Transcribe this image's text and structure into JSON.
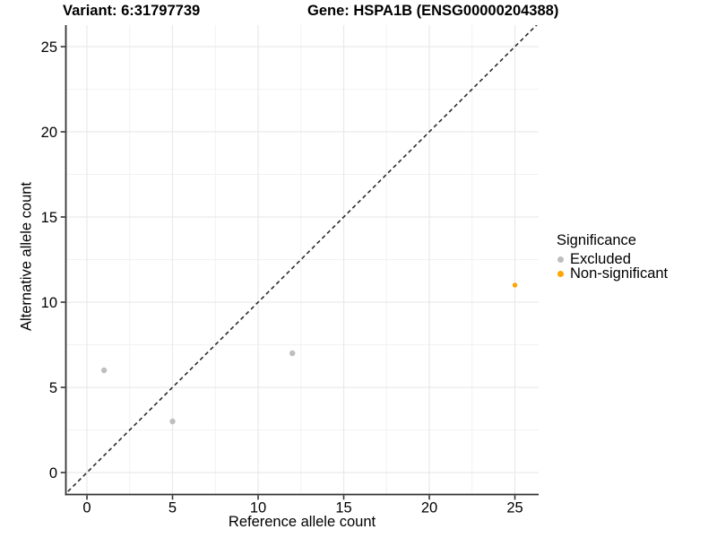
{
  "chart_data": {
    "type": "scatter",
    "titles": {
      "left": "Variant: 6:31797739",
      "right": "Gene: HSPA1B (ENSG00000204388)"
    },
    "xlabel": "Reference allele count",
    "ylabel": "Alternative allele count",
    "xlim": [
      -1.26,
      26.38
    ],
    "ylim": [
      -1.29,
      26.26
    ],
    "xticks": [
      0,
      5,
      10,
      15,
      20,
      25
    ],
    "yticks": [
      0,
      5,
      10,
      15,
      20,
      25
    ],
    "xticks_minor": [
      2.5,
      7.5,
      12.5,
      17.5,
      22.5
    ],
    "yticks_minor": [
      2.5,
      7.5,
      12.5,
      17.5,
      22.5
    ],
    "grid": "major+minor",
    "reference_line": {
      "type": "identity",
      "equation": "y = x",
      "style": "dashed"
    },
    "legend": {
      "title": "Significance",
      "position": "right"
    },
    "series": [
      {
        "name": "Excluded",
        "color": "#BEBEBE",
        "marker_radius": 3.2,
        "points": [
          {
            "x": 1,
            "y": 6
          },
          {
            "x": 5,
            "y": 3
          },
          {
            "x": 12,
            "y": 7
          }
        ]
      },
      {
        "name": "Non-significant",
        "color": "#FFA500",
        "marker_radius": 2.7,
        "points": [
          {
            "x": 25,
            "y": 11
          }
        ]
      }
    ]
  },
  "colors": {
    "background": "#FFFFFF",
    "text": "#000000",
    "axis_line": "#333333",
    "grid_major": "#E9E9E9",
    "grid_minor": "#F2F2F2",
    "dashed_line": "#2B2B2B"
  }
}
